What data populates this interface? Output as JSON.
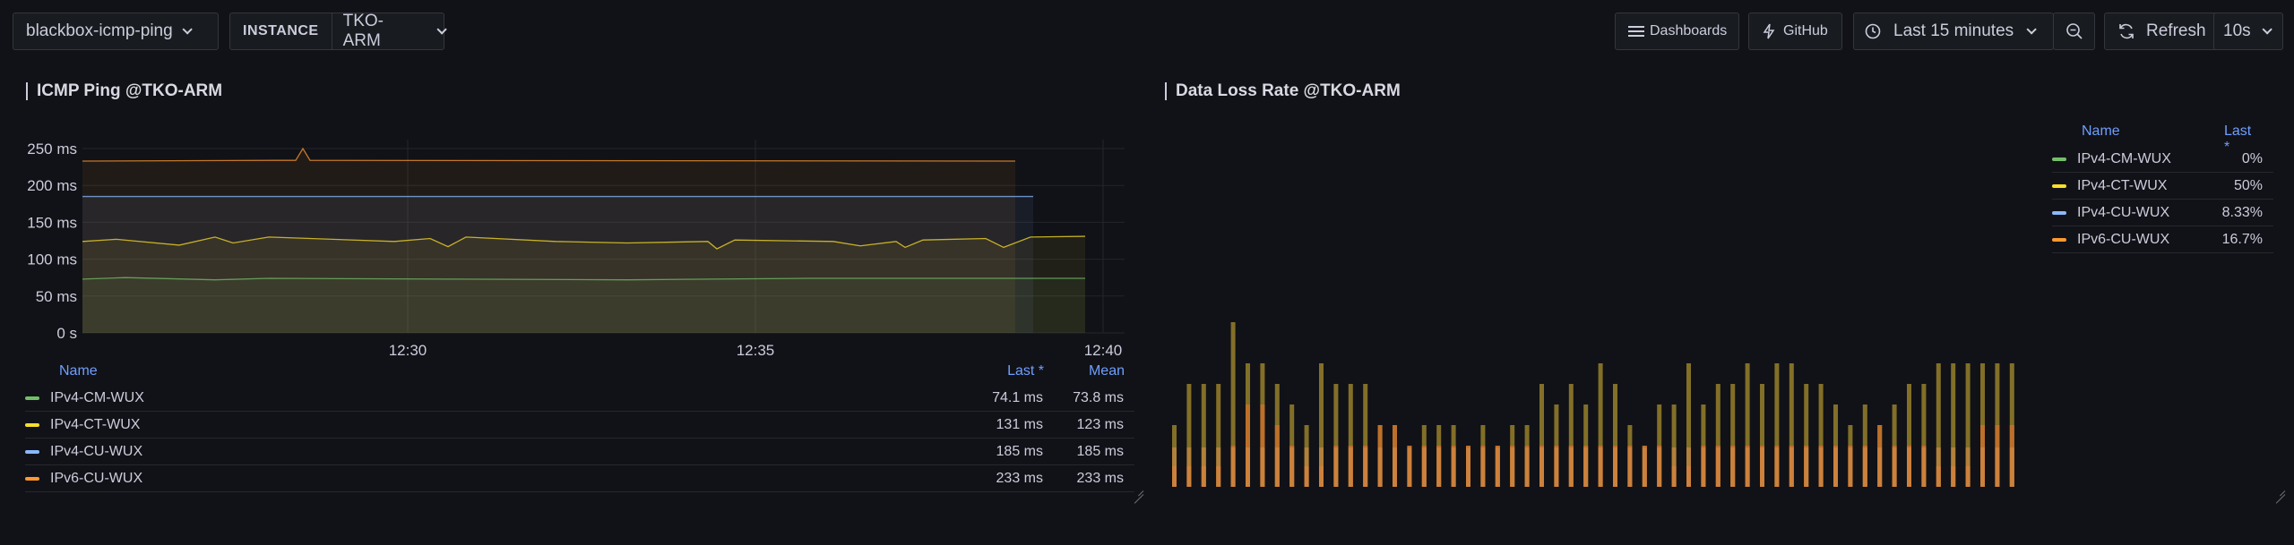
{
  "toolbar": {
    "dashboard_select": "blackbox-icmp-ping",
    "instance_label": "INSTANCE",
    "instance_value": "TKO-ARM",
    "dashboards_label": "Dashboards",
    "github_label": "GitHub",
    "time_range": "Last 15 minutes",
    "refresh_label": "Refresh",
    "refresh_interval": "10s"
  },
  "colors": {
    "ipv4_cm": "#73bf69",
    "ipv4_ct": "#fade2a",
    "ipv4_cu": "#8ab8ff",
    "ipv6_cu": "#ff9830"
  },
  "ping_panel": {
    "title": "ICMP Ping @TKO-ARM",
    "y_ticks": [
      "250 ms",
      "200 ms",
      "150 ms",
      "100 ms",
      "50 ms",
      "0 s"
    ],
    "x_ticks": [
      "12:30",
      "12:35",
      "12:40"
    ],
    "legend_headers": {
      "name": "Name",
      "last": "Last *",
      "mean": "Mean"
    },
    "legend": [
      {
        "name": "IPv4-CM-WUX",
        "last": "74.1 ms",
        "mean": "73.8 ms"
      },
      {
        "name": "IPv4-CT-WUX",
        "last": "131 ms",
        "mean": "123 ms"
      },
      {
        "name": "IPv4-CU-WUX",
        "last": "185 ms",
        "mean": "185 ms"
      },
      {
        "name": "IPv6-CU-WUX",
        "last": "233 ms",
        "mean": "233 ms"
      }
    ]
  },
  "loss_panel": {
    "title": "Data Loss Rate @TKO-ARM",
    "legend_headers": {
      "name": "Name",
      "last": "Last *"
    },
    "legend": [
      {
        "name": "IPv4-CM-WUX",
        "last": "0%"
      },
      {
        "name": "IPv4-CT-WUX",
        "last": "50%"
      },
      {
        "name": "IPv4-CU-WUX",
        "last": "8.33%"
      },
      {
        "name": "IPv6-CU-WUX",
        "last": "16.7%"
      }
    ]
  }
}
